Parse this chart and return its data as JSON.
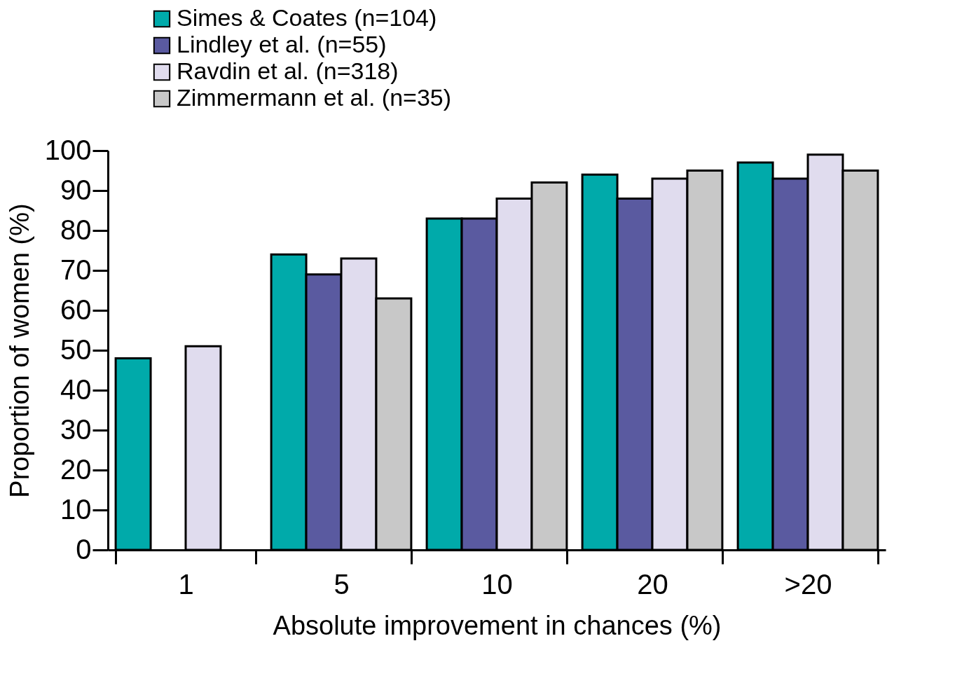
{
  "chart_data": {
    "type": "bar",
    "xlabel": "Absolute improvement in chances (%)",
    "ylabel": "Proportion of women (%)",
    "categories": [
      "1",
      "5",
      "10",
      "20",
      ">20"
    ],
    "series": [
      {
        "name": "Simes & Coates (n=104)",
        "color": "#00aaaa",
        "values": [
          48,
          74,
          83,
          94,
          97
        ]
      },
      {
        "name": "Lindley et al. (n=55)",
        "color": "#5a5aa0",
        "values": [
          null,
          69,
          83,
          88,
          93
        ]
      },
      {
        "name": "Ravdin et al. (n=318)",
        "color": "#e0dcee",
        "values": [
          51,
          73,
          88,
          93,
          99
        ]
      },
      {
        "name": "Zimmermann et al. (n=35)",
        "color": "#c8c8c8",
        "values": [
          null,
          63,
          92,
          95,
          95
        ]
      }
    ],
    "ylim": [
      0,
      100
    ],
    "yticks": [
      0,
      10,
      20,
      30,
      40,
      50,
      60,
      70,
      80,
      90,
      100
    ],
    "grid": false,
    "legend": "top left"
  }
}
